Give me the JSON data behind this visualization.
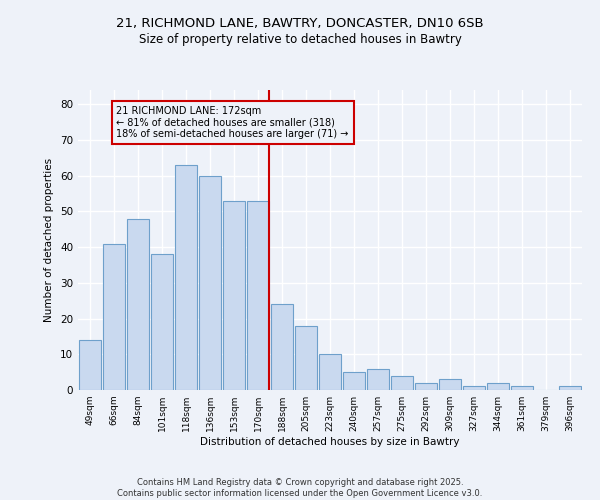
{
  "title1": "21, RICHMOND LANE, BAWTRY, DONCASTER, DN10 6SB",
  "title2": "Size of property relative to detached houses in Bawtry",
  "xlabel": "Distribution of detached houses by size in Bawtry",
  "ylabel": "Number of detached properties",
  "categories": [
    "49sqm",
    "66sqm",
    "84sqm",
    "101sqm",
    "118sqm",
    "136sqm",
    "153sqm",
    "170sqm",
    "188sqm",
    "205sqm",
    "223sqm",
    "240sqm",
    "257sqm",
    "275sqm",
    "292sqm",
    "309sqm",
    "327sqm",
    "344sqm",
    "361sqm",
    "379sqm",
    "396sqm"
  ],
  "values": [
    14,
    41,
    48,
    38,
    63,
    60,
    53,
    53,
    24,
    18,
    10,
    5,
    6,
    4,
    2,
    3,
    1,
    2,
    1,
    0,
    1
  ],
  "highlight_index": 7,
  "bar_color": "#c9d9ef",
  "bar_edge_color": "#6ea0cb",
  "highlight_line_color": "#cc0000",
  "annotation_text_line1": "21 RICHMOND LANE: 172sqm",
  "annotation_text_line2": "← 81% of detached houses are smaller (318)",
  "annotation_text_line3": "18% of semi-detached houses are larger (71) →",
  "background_color": "#eef2f9",
  "grid_color": "#ffffff",
  "ylim": [
    0,
    84
  ],
  "yticks": [
    0,
    10,
    20,
    30,
    40,
    50,
    60,
    70,
    80
  ],
  "footer_line1": "Contains HM Land Registry data © Crown copyright and database right 2025.",
  "footer_line2": "Contains public sector information licensed under the Open Government Licence v3.0."
}
